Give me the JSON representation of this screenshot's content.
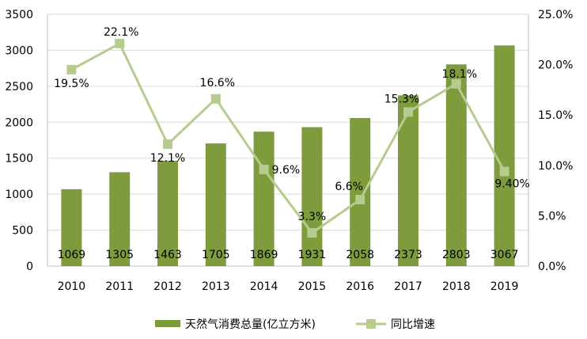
{
  "chart_data": {
    "type": "bar",
    "categories": [
      "2010",
      "2011",
      "2012",
      "2013",
      "2014",
      "2015",
      "2016",
      "2017",
      "2018",
      "2019"
    ],
    "series": [
      {
        "name": "天然气消费总量(亿立方米)",
        "kind": "bar",
        "axis": "left",
        "values": [
          1069,
          1305,
          1463,
          1705,
          1869,
          1931,
          2058,
          2373,
          2803,
          3067
        ],
        "data_labels": [
          "1069",
          "1305",
          "1463",
          "1705",
          "1869",
          "1931",
          "2058",
          "2373",
          "2803",
          "3067"
        ],
        "color": "#7e9b3d"
      },
      {
        "name": "同比增速",
        "kind": "line",
        "axis": "right",
        "values": [
          19.5,
          22.1,
          12.1,
          16.6,
          9.6,
          3.3,
          6.6,
          15.3,
          18.1,
          9.4
        ],
        "data_labels": [
          "19.5%",
          "22.1%",
          "12.1%",
          "16.6%",
          "9.6%",
          "3.3%",
          "6.6%",
          "15.3%",
          "18.1%",
          "9.40%"
        ],
        "color": "#b5cc8e"
      }
    ],
    "y_left": {
      "range": [
        0,
        3500
      ],
      "ticks": [
        0,
        500,
        1000,
        1500,
        2000,
        2500,
        3000,
        3500
      ],
      "tick_labels": [
        "0",
        "500",
        "1000",
        "1500",
        "2000",
        "2500",
        "3000",
        "3500"
      ]
    },
    "y_right": {
      "range": [
        0,
        25
      ],
      "ticks": [
        0,
        5,
        10,
        15,
        20,
        25
      ],
      "tick_labels": [
        "0.0%",
        "5.0%",
        "10.0%",
        "15.0%",
        "20.0%",
        "25.0%"
      ]
    },
    "grid": true,
    "legend_position": "bottom"
  }
}
